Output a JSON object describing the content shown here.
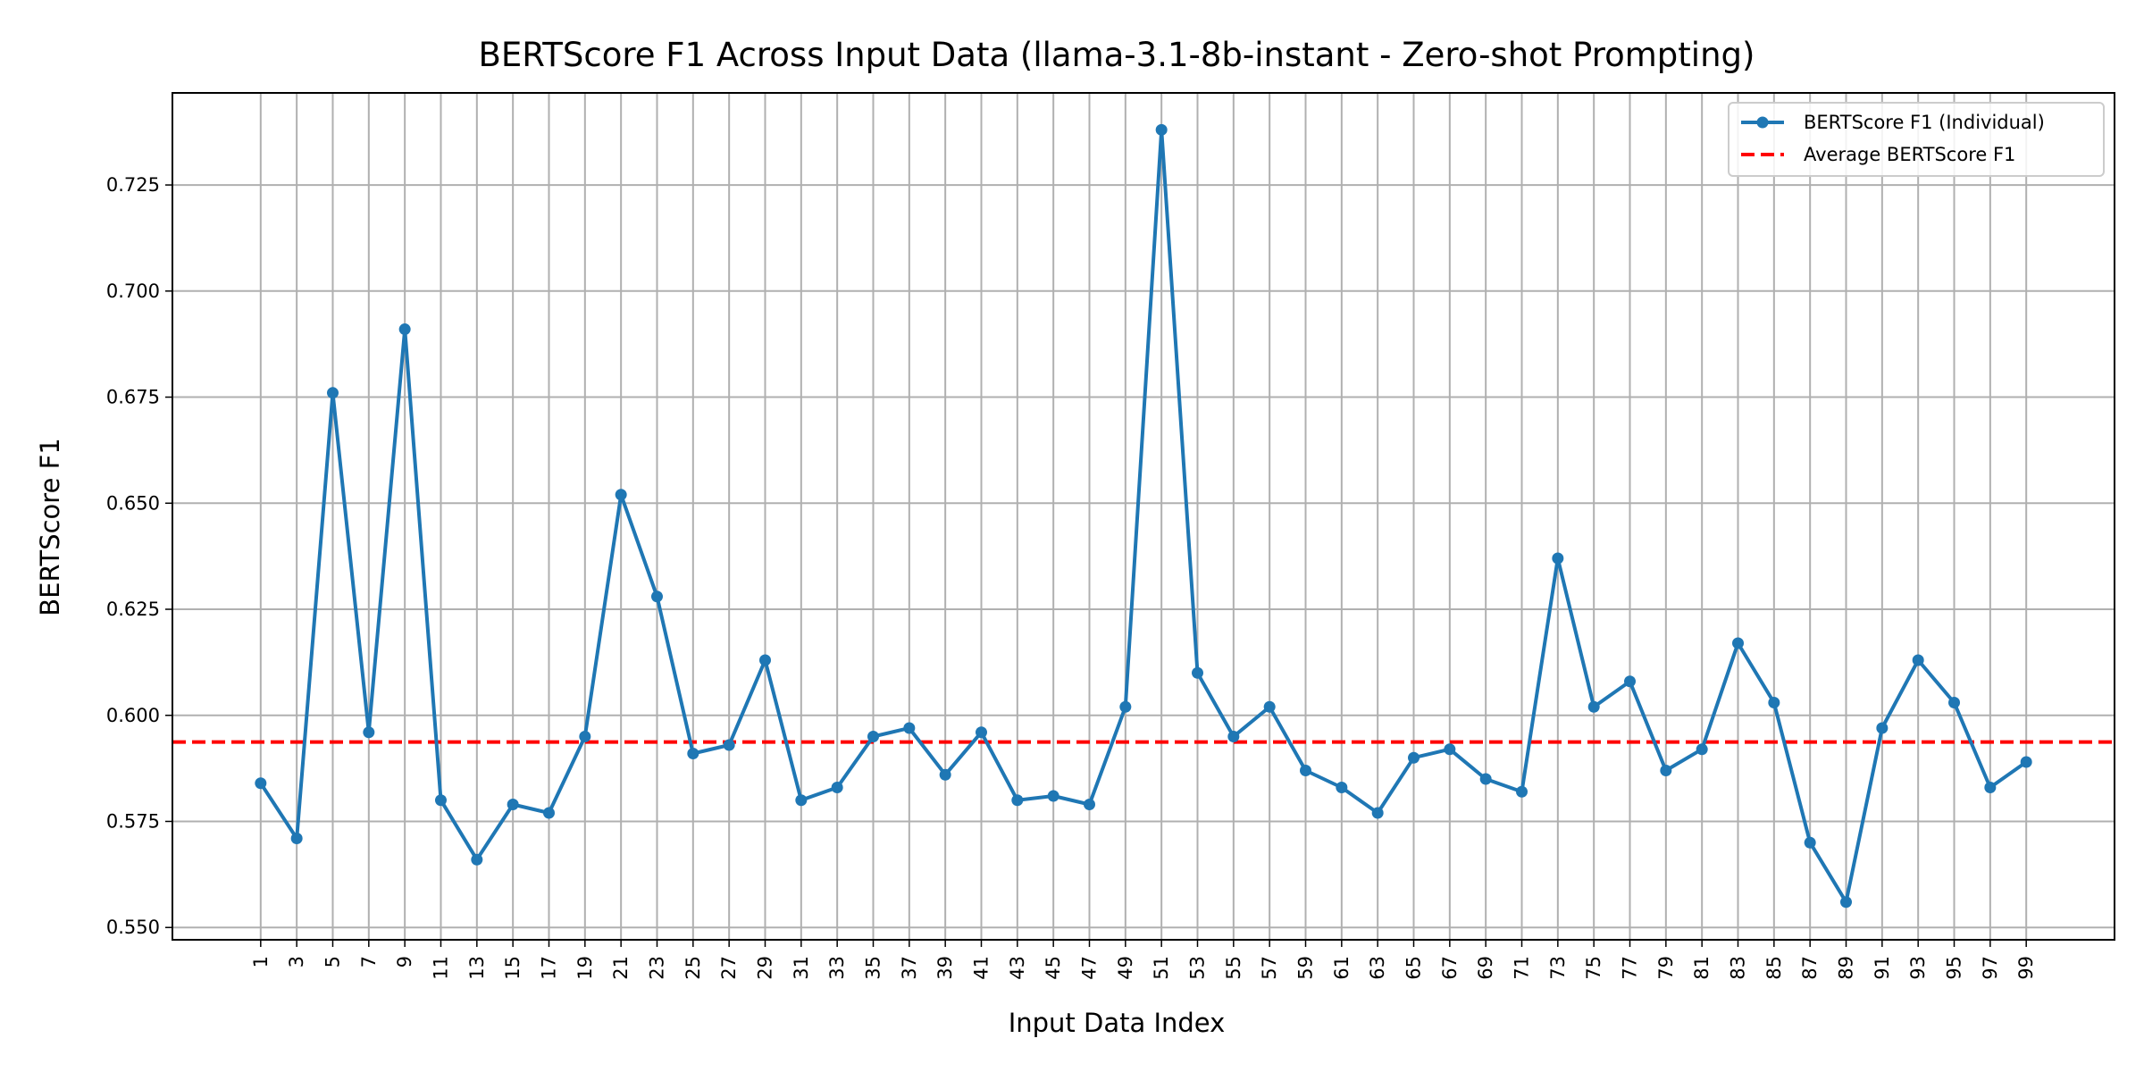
{
  "chart_data": {
    "type": "line",
    "title": "BERTScore F1 Across Input Data (llama-3.1-8b-instant - Zero-shot Prompting)",
    "xlabel": "Input Data Index",
    "ylabel": "BERTScore F1",
    "x": [
      1,
      3,
      5,
      7,
      9,
      11,
      13,
      15,
      17,
      19,
      21,
      23,
      25,
      27,
      29,
      31,
      33,
      35,
      37,
      39,
      41,
      43,
      45,
      47,
      49,
      51,
      53,
      55,
      57,
      59,
      61,
      63,
      65,
      67,
      69,
      71,
      73,
      75,
      77,
      79,
      81,
      83,
      85,
      87,
      89,
      91,
      93,
      95,
      97,
      99
    ],
    "x_ticks": [
      1,
      3,
      5,
      7,
      9,
      11,
      13,
      15,
      17,
      19,
      21,
      23,
      25,
      27,
      29,
      31,
      33,
      35,
      37,
      39,
      41,
      43,
      45,
      47,
      49,
      51,
      53,
      55,
      57,
      59,
      61,
      63,
      65,
      67,
      69,
      71,
      73,
      75,
      77,
      79,
      81,
      83,
      85,
      87,
      89,
      91,
      93,
      95,
      97,
      99
    ],
    "y_ticks": [
      0.55,
      0.575,
      0.6,
      0.625,
      0.65,
      0.675,
      0.7,
      0.725
    ],
    "y_tick_labels": [
      "0.550",
      "0.575",
      "0.600",
      "0.625",
      "0.650",
      "0.675",
      "0.700",
      "0.725"
    ],
    "xlim": [
      -3.9,
      103.9
    ],
    "ylim": [
      0.5471,
      0.7467
    ],
    "grid": true,
    "legend_position": "top-right",
    "series": [
      {
        "name": "BERTScore F1 (Individual)",
        "color": "#1f77b4",
        "style": "solid-with-markers",
        "values": [
          0.584,
          0.571,
          0.676,
          0.596,
          0.691,
          0.58,
          0.566,
          0.579,
          0.577,
          0.595,
          0.652,
          0.628,
          0.591,
          0.593,
          0.613,
          0.58,
          0.583,
          0.595,
          0.597,
          0.586,
          0.596,
          0.58,
          0.581,
          0.579,
          0.602,
          0.738,
          0.61,
          0.595,
          0.602,
          0.587,
          0.583,
          0.577,
          0.59,
          0.592,
          0.585,
          0.582,
          0.637,
          0.602,
          0.608,
          0.587,
          0.592,
          0.617,
          0.603,
          0.57,
          0.556,
          0.597,
          0.613,
          0.603,
          0.583,
          0.589
        ]
      },
      {
        "name": "Average BERTScore F1",
        "color": "#ff0000",
        "style": "dashed",
        "value": 0.5937
      }
    ]
  }
}
